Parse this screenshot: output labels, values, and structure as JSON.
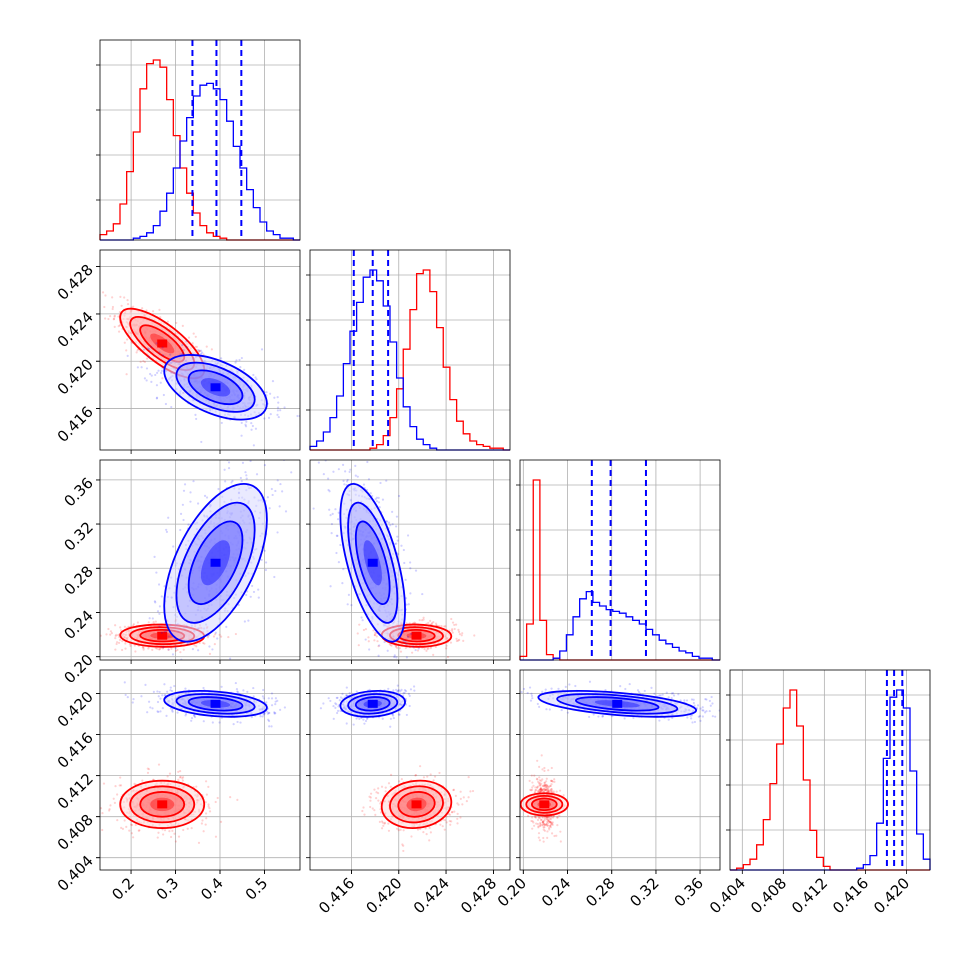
{
  "chart_data": {
    "type": "corner",
    "grid": true,
    "colors": {
      "series_a": "#ff0000",
      "series_b": "#0000ff"
    },
    "series": [
      {
        "color": "#ff0000",
        "mean": [
          0.27,
          0.4215,
          0.219,
          0.4092
        ],
        "sd": [
          0.045,
          0.0014,
          0.0048,
          0.0011
        ]
      },
      {
        "color": "#0000ff",
        "mean": [
          0.39,
          0.4178,
          0.285,
          0.419
        ],
        "sd": [
          0.055,
          0.0013,
          0.034,
          0.0006
        ]
      }
    ],
    "parameters": [
      {
        "range": [
          0.13,
          0.58
        ],
        "ticks": [
          "0.2",
          "0.3",
          "0.4",
          "0.5"
        ],
        "tick_values": [
          0.2,
          0.3,
          0.4,
          0.5
        ]
      },
      {
        "range": [
          0.4125,
          0.4294
        ],
        "ticks": [
          "0.416",
          "0.420",
          "0.424",
          "0.428"
        ],
        "tick_values": [
          0.416,
          0.42,
          0.424,
          0.428
        ]
      },
      {
        "range": [
          0.197,
          0.378
        ],
        "ticks": [
          "0.20",
          "0.24",
          "0.28",
          "0.32",
          "0.36"
        ],
        "tick_values": [
          0.2,
          0.24,
          0.28,
          0.32,
          0.36
        ]
      },
      {
        "range": [
          0.4028,
          0.4223
        ],
        "ticks": [
          "0.404",
          "0.408",
          "0.412",
          "0.416",
          "0.420"
        ],
        "tick_values": [
          0.404,
          0.408,
          0.412,
          0.416,
          0.42
        ]
      }
    ],
    "quantile_lines": [
      [
        0.338,
        0.392,
        0.448
      ],
      [
        0.4162,
        0.4178,
        0.4191
      ],
      [
        0.262,
        0.279,
        0.311
      ],
      [
        0.4181,
        0.4188,
        0.4196
      ]
    ],
    "histograms": [
      {
        "bin_edges": [
          0.13,
          0.145,
          0.16,
          0.175,
          0.19,
          0.205,
          0.22,
          0.235,
          0.25,
          0.265,
          0.28,
          0.295,
          0.31,
          0.325,
          0.34,
          0.355,
          0.37,
          0.385,
          0.4,
          0.415,
          0.43,
          0.445,
          0.46,
          0.475,
          0.49,
          0.505,
          0.52,
          0.535,
          0.55,
          0.565,
          0.58
        ],
        "red": [
          3,
          5,
          9,
          20,
          38,
          60,
          84,
          98,
          100,
          96,
          78,
          58,
          40,
          26,
          15,
          8,
          4,
          2,
          1,
          0,
          0,
          0,
          0,
          0,
          0,
          0,
          0,
          0,
          0,
          0
        ],
        "blue": [
          0,
          0,
          0,
          0,
          0,
          1,
          2,
          4,
          8,
          16,
          26,
          40,
          55,
          68,
          80,
          86,
          87,
          84,
          78,
          66,
          52,
          40,
          28,
          18,
          10,
          5,
          3,
          1,
          1,
          0
        ]
      },
      {
        "bin_edges": [
          0.4125,
          0.41306,
          0.41363,
          0.41419,
          0.41475,
          0.41532,
          0.41588,
          0.41644,
          0.417,
          0.41757,
          0.41813,
          0.41869,
          0.41926,
          0.41982,
          0.42038,
          0.42095,
          0.42151,
          0.42207,
          0.42263,
          0.4232,
          0.42376,
          0.42432,
          0.42489,
          0.42545,
          0.42601,
          0.42658,
          0.42714,
          0.4277,
          0.42827,
          0.42883,
          0.4294
        ],
        "red": [
          0,
          0,
          0,
          0,
          0,
          0,
          0,
          0,
          0,
          1,
          3,
          8,
          18,
          34,
          56,
          78,
          98,
          100,
          88,
          68,
          46,
          28,
          16,
          9,
          5,
          3,
          2,
          1,
          1,
          0
        ],
        "blue": [
          2,
          5,
          10,
          18,
          30,
          48,
          66,
          82,
          96,
          100,
          94,
          80,
          60,
          40,
          24,
          13,
          6,
          3,
          1,
          0,
          0,
          0,
          0,
          0,
          0,
          0,
          0,
          0,
          0,
          0
        ]
      },
      {
        "bin_edges": [
          0.197,
          0.203,
          0.209,
          0.215,
          0.221,
          0.227,
          0.233,
          0.239,
          0.245,
          0.251,
          0.257,
          0.263,
          0.269,
          0.275,
          0.281,
          0.287,
          0.293,
          0.299,
          0.305,
          0.311,
          0.317,
          0.323,
          0.329,
          0.335,
          0.341,
          0.347,
          0.353,
          0.359,
          0.365,
          0.371,
          0.378
        ],
        "red": [
          2,
          20,
          100,
          22,
          3,
          1,
          0,
          0,
          0,
          0,
          0,
          0,
          0,
          0,
          0,
          0,
          0,
          0,
          0,
          0,
          0,
          0,
          0,
          0,
          0,
          0,
          0,
          0,
          0,
          0
        ],
        "blue": [
          0,
          0,
          0,
          0,
          0,
          1,
          5,
          14,
          24,
          34,
          38,
          32,
          30,
          28,
          27,
          26,
          24,
          22,
          20,
          17,
          14,
          11,
          9,
          7,
          5,
          4,
          2,
          1,
          1,
          0
        ]
      },
      {
        "bin_edges": [
          0.4028,
          0.40345,
          0.4041,
          0.40475,
          0.4054,
          0.40605,
          0.4067,
          0.40735,
          0.408,
          0.40865,
          0.4093,
          0.40995,
          0.4106,
          0.41125,
          0.4119,
          0.41255,
          0.4132,
          0.41385,
          0.4145,
          0.41515,
          0.4158,
          0.41645,
          0.4171,
          0.41775,
          0.4184,
          0.41905,
          0.4197,
          0.42035,
          0.421,
          0.42165,
          0.4223
        ],
        "red": [
          0,
          1,
          3,
          6,
          14,
          28,
          48,
          70,
          90,
          100,
          80,
          50,
          22,
          7,
          2,
          0,
          0,
          0,
          0,
          0,
          0,
          0,
          0,
          0,
          0,
          0,
          0,
          0,
          0,
          0
        ],
        "blue": [
          0,
          0,
          0,
          0,
          0,
          0,
          0,
          0,
          0,
          0,
          0,
          0,
          0,
          0,
          0,
          0,
          0,
          0,
          0,
          1,
          3,
          8,
          26,
          62,
          96,
          100,
          90,
          55,
          20,
          6
        ]
      }
    ],
    "pairs": [
      {
        "row": 1,
        "col": 0,
        "red": {
          "rho": -0.75
        },
        "blue": {
          "rho": -0.5
        }
      },
      {
        "row": 2,
        "col": 0,
        "red": {
          "rho": -0.05
        },
        "blue": {
          "rho": 0.55
        }
      },
      {
        "row": 2,
        "col": 1,
        "red": {
          "rho": -0.05
        },
        "blue": {
          "rho": -0.6
        }
      },
      {
        "row": 3,
        "col": 0,
        "red": {
          "rho": 0.0
        },
        "blue": {
          "rho": -0.3
        }
      },
      {
        "row": 3,
        "col": 1,
        "red": {
          "rho": 0.1
        },
        "blue": {
          "rho": 0.15
        }
      },
      {
        "row": 3,
        "col": 2,
        "red": {
          "rho": 0.0
        },
        "blue": {
          "rho": -0.5
        }
      }
    ]
  }
}
